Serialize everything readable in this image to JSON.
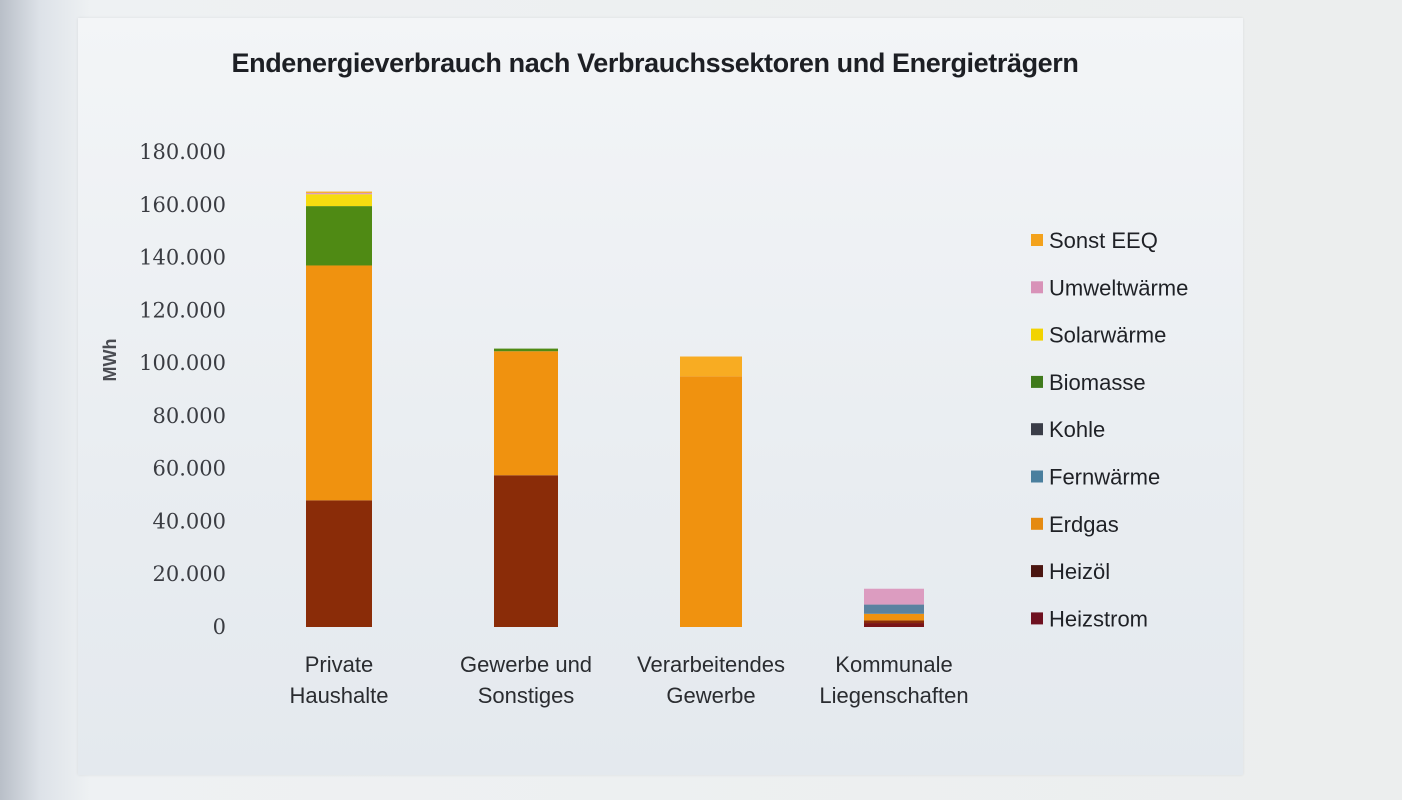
{
  "chart_data": {
    "type": "bar",
    "stacked": true,
    "title": "Endenergieverbrauch nach Verbrauchssektoren und Energieträgern",
    "xlabel": "",
    "ylabel": "MWh",
    "ylim": [
      0,
      180000
    ],
    "yticks": [
      0,
      20000,
      40000,
      60000,
      80000,
      100000,
      120000,
      140000,
      160000,
      180000
    ],
    "ytick_labels": [
      "0",
      "20.000",
      "40.000",
      "60.000",
      "80.000",
      "100.000",
      "120.000",
      "140.000",
      "160.000",
      "180.000"
    ],
    "grid": false,
    "legend_position": "right",
    "categories": [
      [
        "Private",
        "Haushalte"
      ],
      [
        "Gewerbe und",
        "Sonstiges"
      ],
      [
        "Verarbeitendes",
        "Gewerbe"
      ],
      [
        "Kommunale",
        "Liegenschaften"
      ]
    ],
    "series": [
      {
        "name": "Heizstrom",
        "color": "#6e1020",
        "bar_color": "#7a1418",
        "values": [
          0,
          0,
          0,
          1500
        ]
      },
      {
        "name": "Heizöl",
        "color": "#4a1510",
        "bar_color": "#8a2c08",
        "values": [
          48000,
          57500,
          0,
          1000
        ]
      },
      {
        "name": "Erdgas",
        "color": "#e58a10",
        "bar_color": "#f0920f",
        "values": [
          89000,
          47000,
          95000,
          2500
        ]
      },
      {
        "name": "Fernwärme",
        "color": "#4a7f9e",
        "bar_color": "#5b82a0",
        "values": [
          0,
          0,
          0,
          3500
        ]
      },
      {
        "name": "Kohle",
        "color": "#3a3d48",
        "bar_color": "#3a3d48",
        "values": [
          0,
          0,
          0,
          0
        ]
      },
      {
        "name": "Biomasse",
        "color": "#3f7a1c",
        "bar_color": "#4f8a14",
        "values": [
          22500,
          1000,
          0,
          0
        ]
      },
      {
        "name": "Solarwärme",
        "color": "#f2d300",
        "bar_color": "#f6dc10",
        "values": [
          4500,
          0,
          0,
          0
        ]
      },
      {
        "name": "Umweltwärme",
        "color": "#d892b8",
        "bar_color": "#dc9cc0",
        "values": [
          500,
          0,
          0,
          6000
        ]
      },
      {
        "name": "Sonst EEQ",
        "color": "#f3a21c",
        "bar_color": "#f8ac22",
        "values": [
          500,
          0,
          7500,
          0
        ]
      }
    ],
    "legend_order": [
      "Sonst EEQ",
      "Umweltwärme",
      "Solarwärme",
      "Biomasse",
      "Kohle",
      "Fernwärme",
      "Erdgas",
      "Heizöl",
      "Heizstrom"
    ]
  }
}
